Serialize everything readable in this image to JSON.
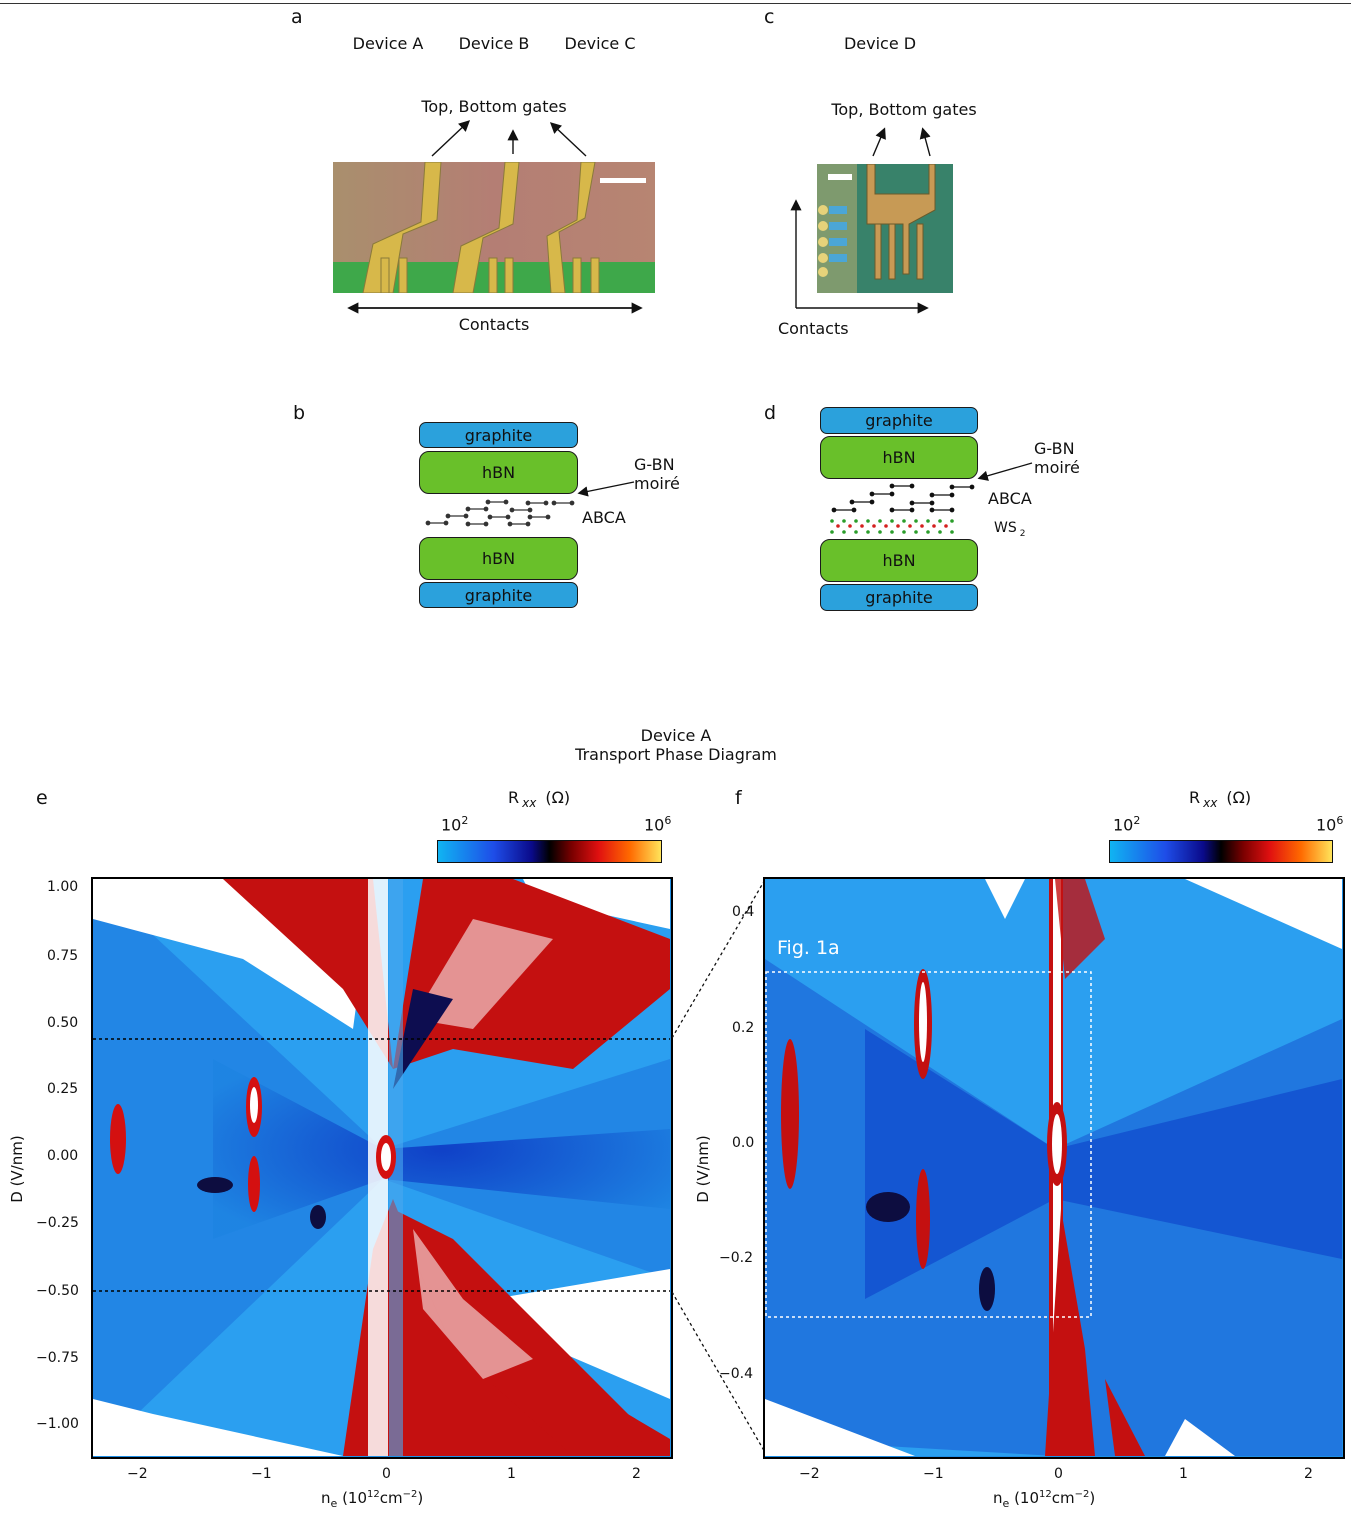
{
  "header_rule": true,
  "panels": {
    "a": {
      "label": "a",
      "devices": [
        "Device A",
        "Device B",
        "Device C"
      ],
      "gates_label": "Top, Bottom gates",
      "contacts_label": "Contacts"
    },
    "c": {
      "label": "c",
      "device": "Device D",
      "gates_label": "Top, Bottom gates",
      "contacts_label": "Contacts"
    },
    "b": {
      "label": "b",
      "layers": [
        "graphite",
        "hBN",
        "hBN",
        "graphite"
      ],
      "moire_label_1": "G-BN",
      "moire_label_2": "moiré",
      "abca_label": "ABCA"
    },
    "d": {
      "label": "d",
      "layers": [
        "graphite",
        "hBN",
        "hBN",
        "graphite"
      ],
      "moire_label_1": "G-BN",
      "moire_label_2": "moiré",
      "abca_label": "ABCA",
      "ws2_label": "WS",
      "ws2_sub": "2"
    },
    "title": {
      "line1": "Device A",
      "line2": "Transport Phase Diagram"
    },
    "e": {
      "label": "e",
      "colorbar_title": "R",
      "colorbar_sub": "xx",
      "colorbar_unit": "(Ω)",
      "colorbar_min": "10",
      "colorbar_min_exp": "2",
      "colorbar_max": "10",
      "colorbar_max_exp": "6",
      "ylabel": "D (V/nm)",
      "xlabel_main": "n",
      "xlabel_sub": "e",
      "xlabel_unit": "(10",
      "xlabel_exp1": "12",
      "xlabel_unit2": "cm",
      "xlabel_exp2": "−2",
      "xlabel_close": ")",
      "yticks": [
        "1.00",
        "0.75",
        "0.50",
        "0.25",
        "0.00",
        "−0.25",
        "−0.50",
        "−0.75",
        "−1.00"
      ],
      "xticks": [
        "−2",
        "−1",
        "0",
        "1",
        "2"
      ]
    },
    "f": {
      "label": "f",
      "colorbar_title": "R",
      "colorbar_sub": "xx",
      "colorbar_unit": "(Ω)",
      "colorbar_min": "10",
      "colorbar_min_exp": "2",
      "colorbar_max": "10",
      "colorbar_max_exp": "6",
      "ylabel": "D (V/nm)",
      "xlabel_main": "n",
      "xlabel_sub": "e",
      "xlabel_unit": "(10",
      "xlabel_exp1": "12",
      "xlabel_unit2": "cm",
      "xlabel_exp2": "−2",
      "xlabel_close": ")",
      "yticks": [
        "0.4",
        "0.2",
        "0.0",
        "−0.2",
        "−0.4"
      ],
      "xticks": [
        "−2",
        "−1",
        "0",
        "1",
        "2"
      ],
      "inset_label": "Fig. 1a"
    }
  },
  "colors": {
    "graphite": "#2ba1dc",
    "hbn": "#69c02a",
    "plot_blue": "#1f8fe6",
    "plot_deep_blue": "#0d36c8",
    "plot_red": "#c81010",
    "plot_white": "#ffffff"
  },
  "chart_data": [
    {
      "type": "heatmap",
      "title": "",
      "xlabel": "n_e (10^12 cm^-2)",
      "ylabel": "D (V/nm)",
      "xlim": [
        -2.35,
        2.25
      ],
      "ylim": [
        -1.12,
        1.03
      ],
      "x_ticks": [
        -2,
        -1,
        0,
        1,
        2
      ],
      "y_ticks": [
        1.0,
        0.75,
        0.5,
        0.25,
        0.0,
        -0.25,
        -0.5,
        -0.75,
        -1.0
      ],
      "colorbar": {
        "label": "R_xx (Ω)",
        "min": 100,
        "max": 1000000,
        "scale": "log"
      },
      "dashed_lines_D": [
        0.44,
        -0.5
      ]
    },
    {
      "type": "heatmap",
      "title": "",
      "xlabel": "n_e (10^12 cm^-2)",
      "ylabel": "D (V/nm)",
      "xlim": [
        -2.35,
        2.25
      ],
      "ylim": [
        -0.54,
        0.46
      ],
      "x_ticks": [
        -2,
        -1,
        0,
        1,
        2
      ],
      "y_ticks": [
        0.4,
        0.2,
        0.0,
        -0.2,
        -0.4
      ],
      "colorbar": {
        "label": "R_xx (Ω)",
        "min": 100,
        "max": 1000000,
        "scale": "log"
      },
      "inset_box": {
        "label": "Fig. 1a",
        "x": [
          -2.35,
          0.25
        ],
        "D": [
          -0.3,
          0.3
        ]
      }
    }
  ]
}
